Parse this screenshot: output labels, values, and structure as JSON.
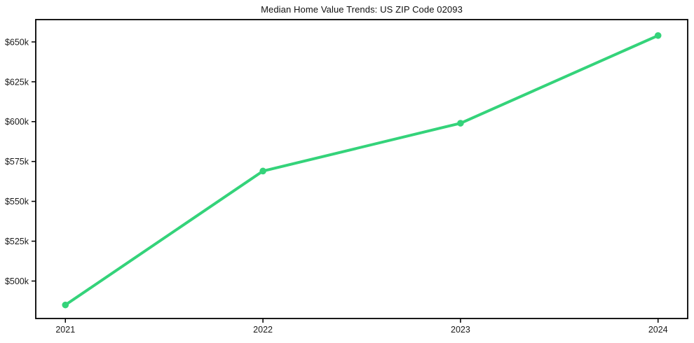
{
  "chart_data": {
    "type": "line",
    "title": "Median Home Value Trends: US ZIP Code 02093",
    "x": [
      2021,
      2022,
      2023,
      2024
    ],
    "values": [
      485000,
      569000,
      599000,
      654000
    ],
    "xlabel": "",
    "ylabel": "",
    "xtick_labels": [
      "2021",
      "2022",
      "2023",
      "2024"
    ],
    "ytick_values": [
      500000,
      525000,
      550000,
      575000,
      600000,
      625000,
      650000
    ],
    "ytick_labels": [
      "$500k",
      "$525k",
      "$550k",
      "$575k",
      "$600k",
      "$625k",
      "$650k"
    ],
    "xlim": [
      2020.85,
      2024.15
    ],
    "ylim": [
      476500,
      664000
    ],
    "grid": false,
    "legend": "none",
    "line_color": "#34d37a",
    "axis_color": "#000000",
    "marker": "circle"
  }
}
